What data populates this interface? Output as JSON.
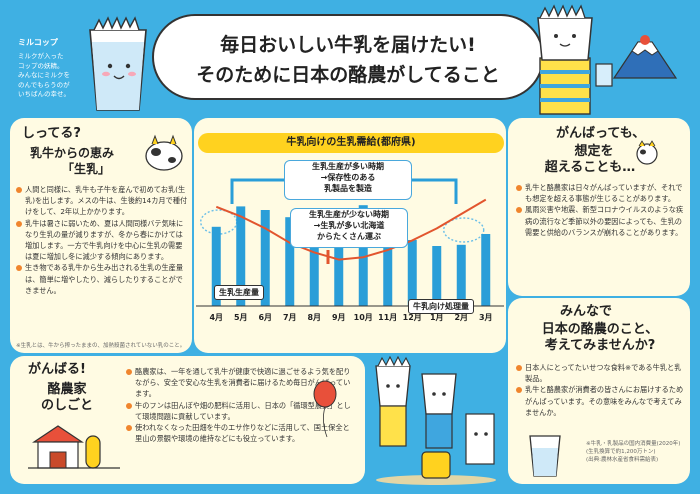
{
  "header": {
    "title_line1": "毎日おいしい牛乳を届けたい!",
    "title_line2": "そのために日本の酪農がしてること"
  },
  "mascot_note": {
    "name": "ミルコップ",
    "text": [
      "ミルクが入った",
      "コップの妖精。",
      "みんなにミルクを",
      "のんでもらうのが",
      "いちばんの幸せ。"
    ]
  },
  "section_left": {
    "heading": "しってる?",
    "title": "乳牛からの恵み",
    "subtitle": "「生乳」",
    "ruby": "せいにゅう",
    "paragraphs": [
      "人間と同様に、乳牛も子牛を産んで初めてお乳(生乳)を出します。メスの牛は、生後約14カ月で種付けをして、2年以上かかります。",
      "乳牛は暑さに弱いため、夏は人間同様バテ気味になり生乳の量が減りますが、冬から春にかけては増加します。一方で牛乳向けを中心に生乳の需要は夏に増加し冬に減少する傾向にあります。",
      "生き物である乳牛から生み出される生乳の生産量は、簡単に増やしたり、減らしたりすることができません。"
    ],
    "footnote": "※生乳とは、牛から搾ったままの、加熱殺菌されていない乳のこと。"
  },
  "chart_data": {
    "type": "bar",
    "title": "牛乳向けの生乳需給(都府県)",
    "categories": [
      "4月",
      "5月",
      "6月",
      "7月",
      "8月",
      "9月",
      "10月",
      "11月",
      "12月",
      "1月",
      "2月",
      "3月"
    ],
    "series": [
      {
        "name": "牛乳向け処理量",
        "values": [
          0.66,
          0.83,
          0.8,
          0.74,
          0.55,
          0.68,
          0.84,
          0.81,
          0.55,
          0.5,
          0.51,
          0.6
        ]
      },
      {
        "name": "生乳生産量",
        "values": [
          0.66,
          0.58,
          0.48,
          0.36,
          0.28,
          0.22,
          0.24,
          0.3,
          0.38,
          0.48,
          0.6,
          0.72
        ]
      }
    ],
    "ylim": [
      0,
      1
    ],
    "legend": "inline",
    "callouts": {
      "high": "生乳生産が多い時期\n→保存性のある\n乳製品を製造",
      "low": "生乳生産が少ない時期\n→生乳が多い北海道\nからたくさん運ぶ"
    }
  },
  "section_right": {
    "heading": "がんばっても、",
    "title_line1": "想定を",
    "title_line2": "超えることも…",
    "paragraphs": [
      "乳牛と酪農家は日々がんばっていますが、それでも想定を超える事態が生じることがあります。",
      "風雨災害や地震、新型コロナウイルスのような疾病の流行など季節以外の要因によっても、生乳の需要と供給のバランスが崩れることがあります。"
    ]
  },
  "section_bottom_left": {
    "heading": "がんばる!",
    "title_line1": "酪農家",
    "title_line2": "のしごと",
    "paragraphs": [
      "酪農家は、一年を通して乳牛が健康で快適に過ごせるよう気を配りながら、安全で安心な生乳を消費者に届けるため毎日がんばっています。",
      "牛のフンは田んぼや畑の肥料に活用し、日本の「循環型農業」として環境問題に貢献しています。",
      "使われなくなった田畑を牛のエサ作りなどに活用して、国土保全と里山の景観や環境の維持などにも役立っています。"
    ]
  },
  "section_bottom_right": {
    "heading": "みんなで",
    "title_line1": "日本の酪農のこと、",
    "title_line2": "考えてみませんか?",
    "paragraphs": [
      "日本人にとってたいせつな食料※である牛乳と乳製品。",
      "乳牛と酪農家が消費者の皆さんにお届けするためがんばっています。その意味をみんなで考えてみませんか。"
    ],
    "notes": [
      "※牛乳・乳製品の国内消費量(2020年)",
      "(生乳換算で約1,200万トン)",
      "(出典:農林水産省食料需給表)"
    ]
  },
  "colors": {
    "background": "#3fb0e3",
    "panel": "#fffbe3",
    "accent_yellow": "#ffd21f",
    "bar_blue": "#2a9ed8",
    "curve_orange": "#e2552e",
    "bullet_orange": "#f0852d"
  }
}
